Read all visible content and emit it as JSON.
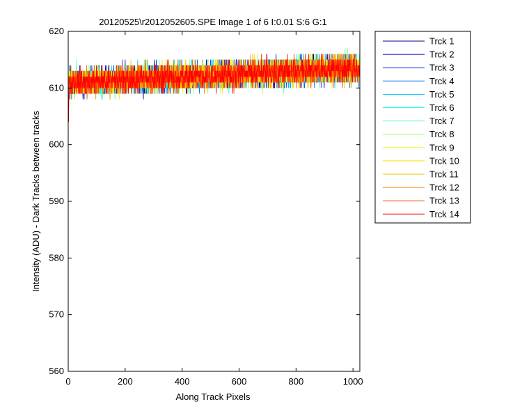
{
  "chart_data": {
    "type": "line",
    "title": "20120525\\r2012052605.SPE  Image 1 of 6  I:0.01  S:6  G:1",
    "xlabel": "Along Track Pixels",
    "ylabel": "Intensity (ADU) - Dark Tracks between tracks",
    "xlim": [
      0,
      1024
    ],
    "ylim": [
      560,
      620
    ],
    "xticks": [
      0,
      200,
      400,
      600,
      800,
      1000
    ],
    "yticks": [
      560,
      570,
      580,
      590,
      600,
      610,
      620
    ],
    "grid": false,
    "legend_position": "outside-right",
    "x_range_points": [
      1,
      1024
    ],
    "start_value": 604,
    "baseline_start": 611.0,
    "baseline_end": 613.5,
    "noise_min": 608,
    "noise_max": 618,
    "series": [
      {
        "name": "Trck 1",
        "color": "#00008f"
      },
      {
        "name": "Trck 2",
        "color": "#0000bf"
      },
      {
        "name": "Trck 3",
        "color": "#0020ff"
      },
      {
        "name": "Trck 4",
        "color": "#0070ff"
      },
      {
        "name": "Trck 5",
        "color": "#00bfff"
      },
      {
        "name": "Trck 6",
        "color": "#10ffef"
      },
      {
        "name": "Trck 7",
        "color": "#50ffaf"
      },
      {
        "name": "Trck 8",
        "color": "#90ff6f"
      },
      {
        "name": "Trck 9",
        "color": "#dfff20"
      },
      {
        "name": "Trck 10",
        "color": "#ffdf00"
      },
      {
        "name": "Trck 11",
        "color": "#ffbf00"
      },
      {
        "name": "Trck 12",
        "color": "#ff8000"
      },
      {
        "name": "Trck 13",
        "color": "#ff4000"
      },
      {
        "name": "Trck 14",
        "color": "#ff0000"
      }
    ]
  }
}
